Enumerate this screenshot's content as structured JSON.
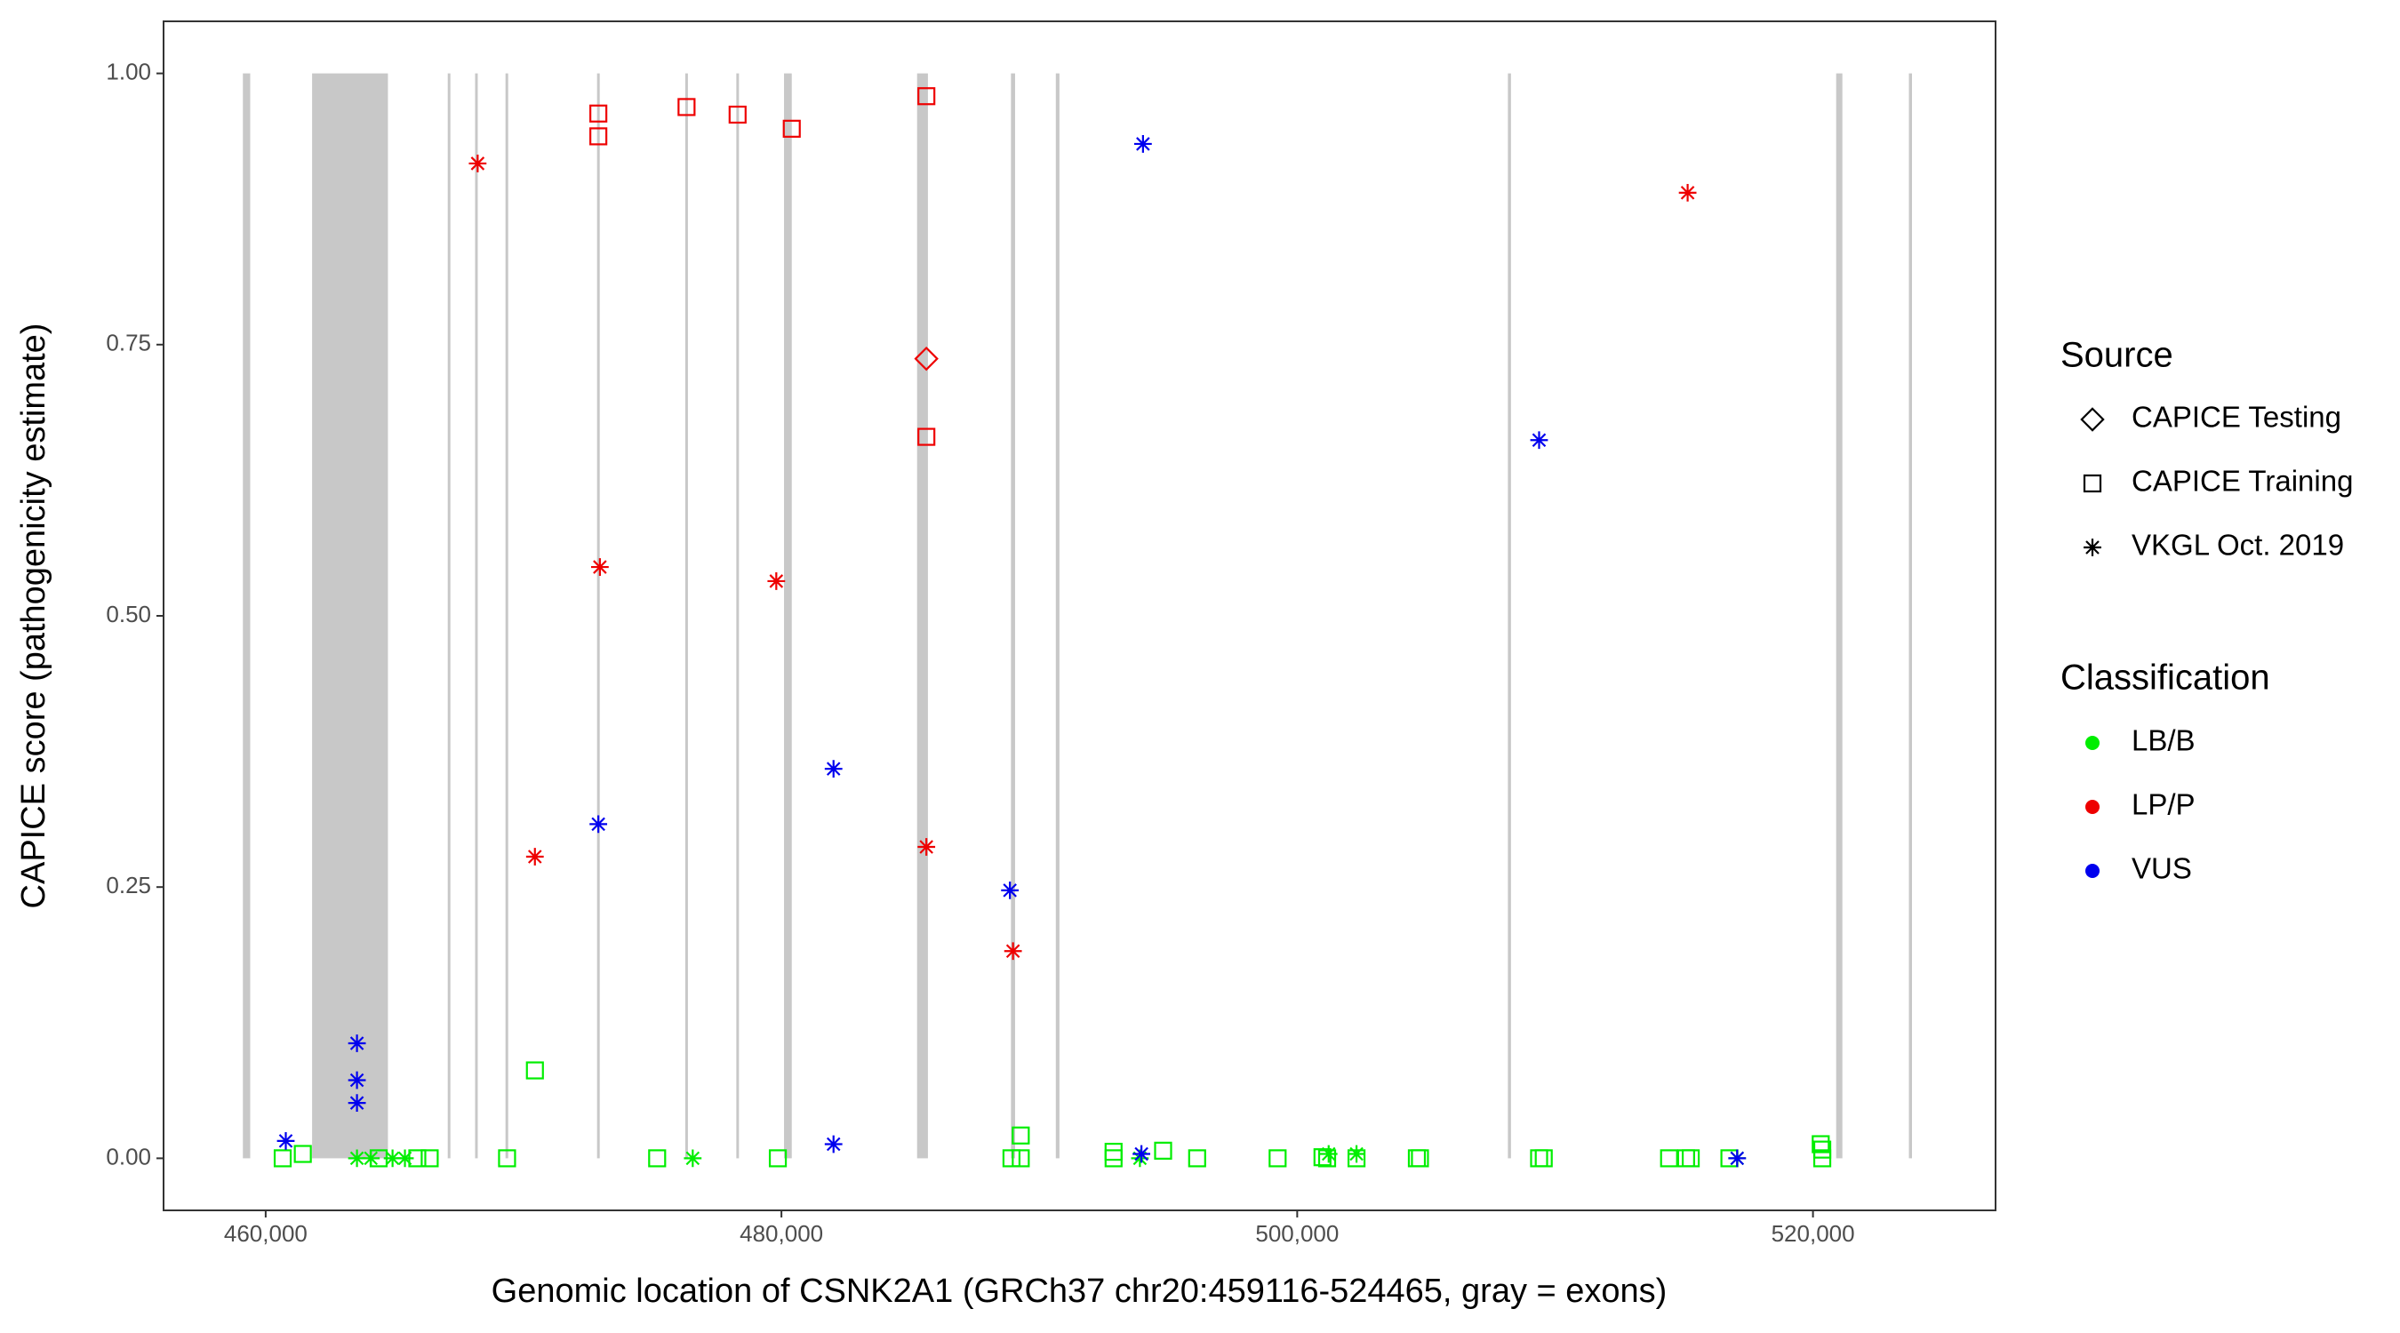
{
  "chart_data": {
    "type": "scatter",
    "x_label": "Genomic location of CSNK2A1 (GRCh37 chr20:459116-524465, gray = exons)",
    "y_label": "CAPICE score (pathogenicity estimate)",
    "xlim": [
      456040,
      527080
    ],
    "ylim": [
      -0.048,
      1.048
    ],
    "xticks": [
      {
        "value": 460000,
        "label": "460,000"
      },
      {
        "value": 480000,
        "label": "480,000"
      },
      {
        "value": 500000,
        "label": "500,000"
      },
      {
        "value": 520000,
        "label": "520,000"
      }
    ],
    "yticks": [
      {
        "value": 0,
        "label": "0.00"
      },
      {
        "value": 0.25,
        "label": "0.25"
      },
      {
        "value": 0.5,
        "label": "0.50"
      },
      {
        "value": 0.75,
        "label": "0.75"
      },
      {
        "value": 1,
        "label": "1.00"
      }
    ],
    "exon_color": "#c8c8c8",
    "exons": [
      [
        459116,
        459400
      ],
      [
        461800,
        464740
      ],
      [
        467060,
        467160
      ],
      [
        468120,
        468220
      ],
      [
        469300,
        469400
      ],
      [
        472850,
        472950
      ],
      [
        476270,
        476370
      ],
      [
        478250,
        478350
      ],
      [
        480100,
        480400
      ],
      [
        485260,
        485680
      ],
      [
        488900,
        489060
      ],
      [
        490640,
        490780
      ],
      [
        508170,
        508290
      ],
      [
        520900,
        521140
      ],
      [
        523720,
        523840
      ]
    ],
    "source_legend": {
      "title": "Source",
      "items": [
        {
          "name": "CAPICE Testing",
          "shape": "diamond"
        },
        {
          "name": "CAPICE Training",
          "shape": "square"
        },
        {
          "name": "VKGL Oct. 2019",
          "shape": "star"
        }
      ]
    },
    "color_legend_title": "Classification",
    "series": [
      {
        "name": "LB/B",
        "color": "#00ee00",
        "x": [
          460660,
          461440,
          464380,
          465880,
          466360,
          469360,
          470440,
          475180,
          479860,
          488920,
          489280,
          489280,
          492880,
          492880,
          494800,
          496120,
          499240,
          500980,
          501160,
          502300,
          504640,
          504760,
          509380,
          509560,
          514420,
          515080,
          515260,
          516760,
          520300,
          520360,
          520360,
          463540,
          464080,
          464920,
          465400,
          476560,
          493900,
          501220,
          502300,
          517060
        ],
        "y": [
          0,
          0.004,
          0,
          0,
          0,
          0,
          0.081,
          0,
          0,
          0,
          0,
          0.021,
          0.006,
          0,
          0.007,
          0,
          0,
          0.001,
          0,
          0,
          0,
          0,
          0,
          0,
          0,
          0,
          0,
          0,
          0.013,
          0.008,
          0,
          0,
          0,
          0,
          0,
          0,
          0,
          0.004,
          0.004,
          0
        ],
        "source": [
          "CAPICE Training",
          "CAPICE Training",
          "CAPICE Training",
          "CAPICE Training",
          "CAPICE Training",
          "CAPICE Training",
          "CAPICE Training",
          "CAPICE Training",
          "CAPICE Training",
          "CAPICE Training",
          "CAPICE Training",
          "CAPICE Training",
          "CAPICE Training",
          "CAPICE Training",
          "CAPICE Training",
          "CAPICE Training",
          "CAPICE Training",
          "CAPICE Training",
          "CAPICE Training",
          "CAPICE Training",
          "CAPICE Training",
          "CAPICE Training",
          "CAPICE Training",
          "CAPICE Training",
          "CAPICE Training",
          "CAPICE Training",
          "CAPICE Training",
          "CAPICE Training",
          "CAPICE Training",
          "CAPICE Training",
          "CAPICE Training",
          "VKGL Oct. 2019",
          "VKGL Oct. 2019",
          "VKGL Oct. 2019",
          "VKGL Oct. 2019",
          "VKGL Oct. 2019",
          "VKGL Oct. 2019",
          "VKGL Oct. 2019",
          "VKGL Oct. 2019",
          "VKGL Oct. 2019"
        ]
      },
      {
        "name": "LP/P",
        "color": "#ee0000",
        "x": [
          472900,
          472900,
          476320,
          478300,
          480400,
          485620,
          485620,
          485620,
          468220,
          472960,
          479800,
          470440,
          485620,
          488980,
          515140
        ],
        "y": [
          0.963,
          0.942,
          0.969,
          0.962,
          0.949,
          0.979,
          0.665,
          0.737,
          0.917,
          0.545,
          0.532,
          0.278,
          0.287,
          0.191,
          0.89
        ],
        "source": [
          "CAPICE Training",
          "CAPICE Training",
          "CAPICE Training",
          "CAPICE Training",
          "CAPICE Training",
          "CAPICE Training",
          "CAPICE Training",
          "CAPICE Testing",
          "VKGL Oct. 2019",
          "VKGL Oct. 2019",
          "VKGL Oct. 2019",
          "VKGL Oct. 2019",
          "VKGL Oct. 2019",
          "VKGL Oct. 2019",
          "VKGL Oct. 2019"
        ]
      },
      {
        "name": "VUS",
        "color": "#0000ee",
        "x": [
          494020,
          509380,
          482020,
          472900,
          488860,
          463540,
          463540,
          463540,
          460780,
          482020,
          493960,
          517060
        ],
        "y": [
          0.935,
          0.662,
          0.359,
          0.308,
          0.247,
          0.106,
          0.072,
          0.051,
          0.016,
          0.013,
          0.004,
          0
        ],
        "source": [
          "VKGL Oct. 2019",
          "VKGL Oct. 2019",
          "VKGL Oct. 2019",
          "VKGL Oct. 2019",
          "VKGL Oct. 2019",
          "VKGL Oct. 2019",
          "VKGL Oct. 2019",
          "VKGL Oct. 2019",
          "VKGL Oct. 2019",
          "VKGL Oct. 2019",
          "VKGL Oct. 2019",
          "VKGL Oct. 2019"
        ]
      }
    ]
  }
}
